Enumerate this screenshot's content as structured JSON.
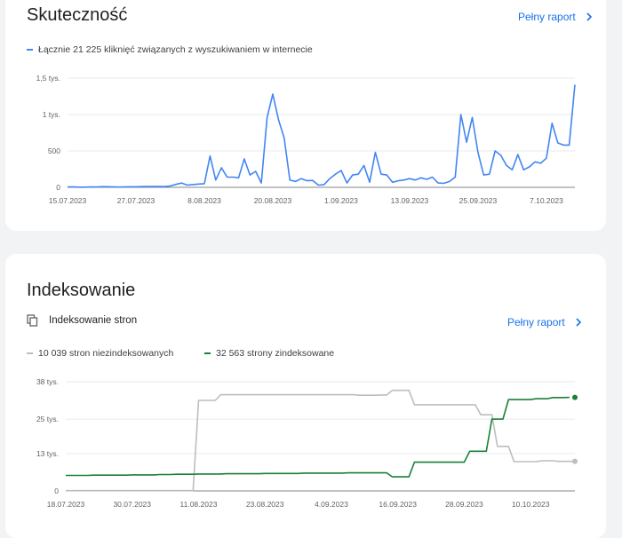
{
  "colors": {
    "accent": "#1a73e8",
    "clicks_line": "#4285f4",
    "not_indexed_line": "#bdbdbd",
    "indexed_line": "#188038"
  },
  "performance": {
    "title": "Skuteczność",
    "report_link": "Pełny raport",
    "legend": "Łącznie 21 225 kliknięć związanych z wyszukiwaniem w internecie"
  },
  "indexing": {
    "title": "Indeksowanie",
    "subtitle": "Indeksowanie stron",
    "subtitle_icon": "copy-pages-icon",
    "report_link": "Pełny raport",
    "legend_not_indexed": "10 039 stron niezindeksowanych",
    "legend_indexed": "32 563 strony zindeksowane"
  },
  "chart_data": [
    {
      "type": "line",
      "title": "",
      "xlabel": "",
      "ylabel": "",
      "y_tick_labels": [
        "1,5 tys.",
        "1 tys.",
        "500",
        "0"
      ],
      "y_ticks": [
        1500,
        1000,
        500,
        0
      ],
      "ylim": [
        0,
        1500
      ],
      "x_tick_labels": [
        "15.07.2023",
        "27.07.2023",
        "8.08.2023",
        "20.08.2023",
        "1.09.2023",
        "13.09.2023",
        "25.09.2023",
        "7.10.2023"
      ],
      "x_tick_index": [
        0,
        12,
        24,
        36,
        48,
        60,
        72,
        84
      ],
      "grid": true,
      "legend_placement": "top-left",
      "series": [
        {
          "name": "Łącznie 21 225 kliknięć związanych z wyszukiwaniem w internecie",
          "values": [
            5,
            5,
            3,
            3,
            5,
            4,
            8,
            8,
            6,
            4,
            5,
            7,
            7,
            10,
            12,
            12,
            12,
            10,
            18,
            40,
            60,
            30,
            38,
            45,
            50,
            430,
            100,
            270,
            140,
            140,
            130,
            390,
            170,
            220,
            60,
            960,
            1280,
            930,
            680,
            100,
            80,
            120,
            90,
            95,
            30,
            35,
            120,
            180,
            230,
            60,
            170,
            180,
            300,
            70,
            480,
            180,
            170,
            70,
            90,
            100,
            120,
            100,
            130,
            110,
            140,
            60,
            55,
            80,
            140,
            1000,
            620,
            960,
            480,
            170,
            180,
            500,
            440,
            300,
            240,
            450,
            240,
            280,
            350,
            330,
            400,
            880,
            610,
            580,
            580,
            1410
          ]
        }
      ]
    },
    {
      "type": "line",
      "title": "",
      "xlabel": "",
      "ylabel": "",
      "y_tick_labels": [
        "38 tys.",
        "25 tys.",
        "13 tys.",
        "0"
      ],
      "y_ticks": [
        38000,
        25000,
        13000,
        0
      ],
      "ylim": [
        0,
        38000
      ],
      "x_tick_labels": [
        "18.07.2023",
        "30.07.2023",
        "11.08.2023",
        "23.08.2023",
        "4.09.2023",
        "16.09.2023",
        "28.09.2023",
        "10.10.2023"
      ],
      "x_tick_index": [
        0,
        12,
        24,
        36,
        48,
        60,
        72,
        84
      ],
      "grid": true,
      "legend_placement": "top-left",
      "series": [
        {
          "name": "10 039 stron niezindeksowanych",
          "values": [
            100,
            100,
            100,
            100,
            100,
            100,
            100,
            100,
            100,
            100,
            100,
            100,
            100,
            100,
            100,
            100,
            100,
            100,
            100,
            100,
            100,
            100,
            100,
            100,
            31500,
            31500,
            31500,
            31500,
            33500,
            33500,
            33500,
            33500,
            33500,
            33500,
            33500,
            33500,
            33500,
            33500,
            33500,
            33500,
            33500,
            33500,
            33500,
            33500,
            33500,
            33500,
            33500,
            33500,
            33500,
            33500,
            33500,
            33500,
            33500,
            33300,
            33300,
            33300,
            33300,
            33400,
            33400,
            35000,
            35000,
            35000,
            35000,
            30000,
            30000,
            30000,
            30000,
            30000,
            30000,
            30000,
            30000,
            30000,
            30000,
            30000,
            30000,
            26500,
            26500,
            26500,
            15500,
            15500,
            15500,
            10200,
            10200,
            10200,
            10200,
            10200,
            10500,
            10500,
            10500,
            10300,
            10300,
            10300,
            10300
          ]
        },
        {
          "name": "32 563 strony zindeksowane",
          "values": [
            5400,
            5400,
            5400,
            5400,
            5400,
            5500,
            5500,
            5500,
            5500,
            5500,
            5500,
            5500,
            5600,
            5600,
            5600,
            5600,
            5600,
            5700,
            5700,
            5700,
            5800,
            5800,
            5800,
            5800,
            5900,
            5900,
            5900,
            5900,
            5900,
            6000,
            6000,
            6000,
            6000,
            6000,
            6000,
            6000,
            6100,
            6100,
            6100,
            6100,
            6100,
            6100,
            6100,
            6200,
            6200,
            6200,
            6200,
            6200,
            6200,
            6200,
            6200,
            6300,
            6300,
            6300,
            6300,
            6300,
            6300,
            6300,
            6300,
            4900,
            4900,
            4900,
            4900,
            10000,
            10000,
            10000,
            10000,
            10000,
            10000,
            10000,
            10000,
            10000,
            10000,
            13800,
            13800,
            13800,
            13800,
            25000,
            25000,
            25000,
            31800,
            31800,
            31800,
            31800,
            31800,
            32100,
            32100,
            32100,
            32500,
            32500,
            32500,
            32563
          ]
        }
      ]
    }
  ]
}
